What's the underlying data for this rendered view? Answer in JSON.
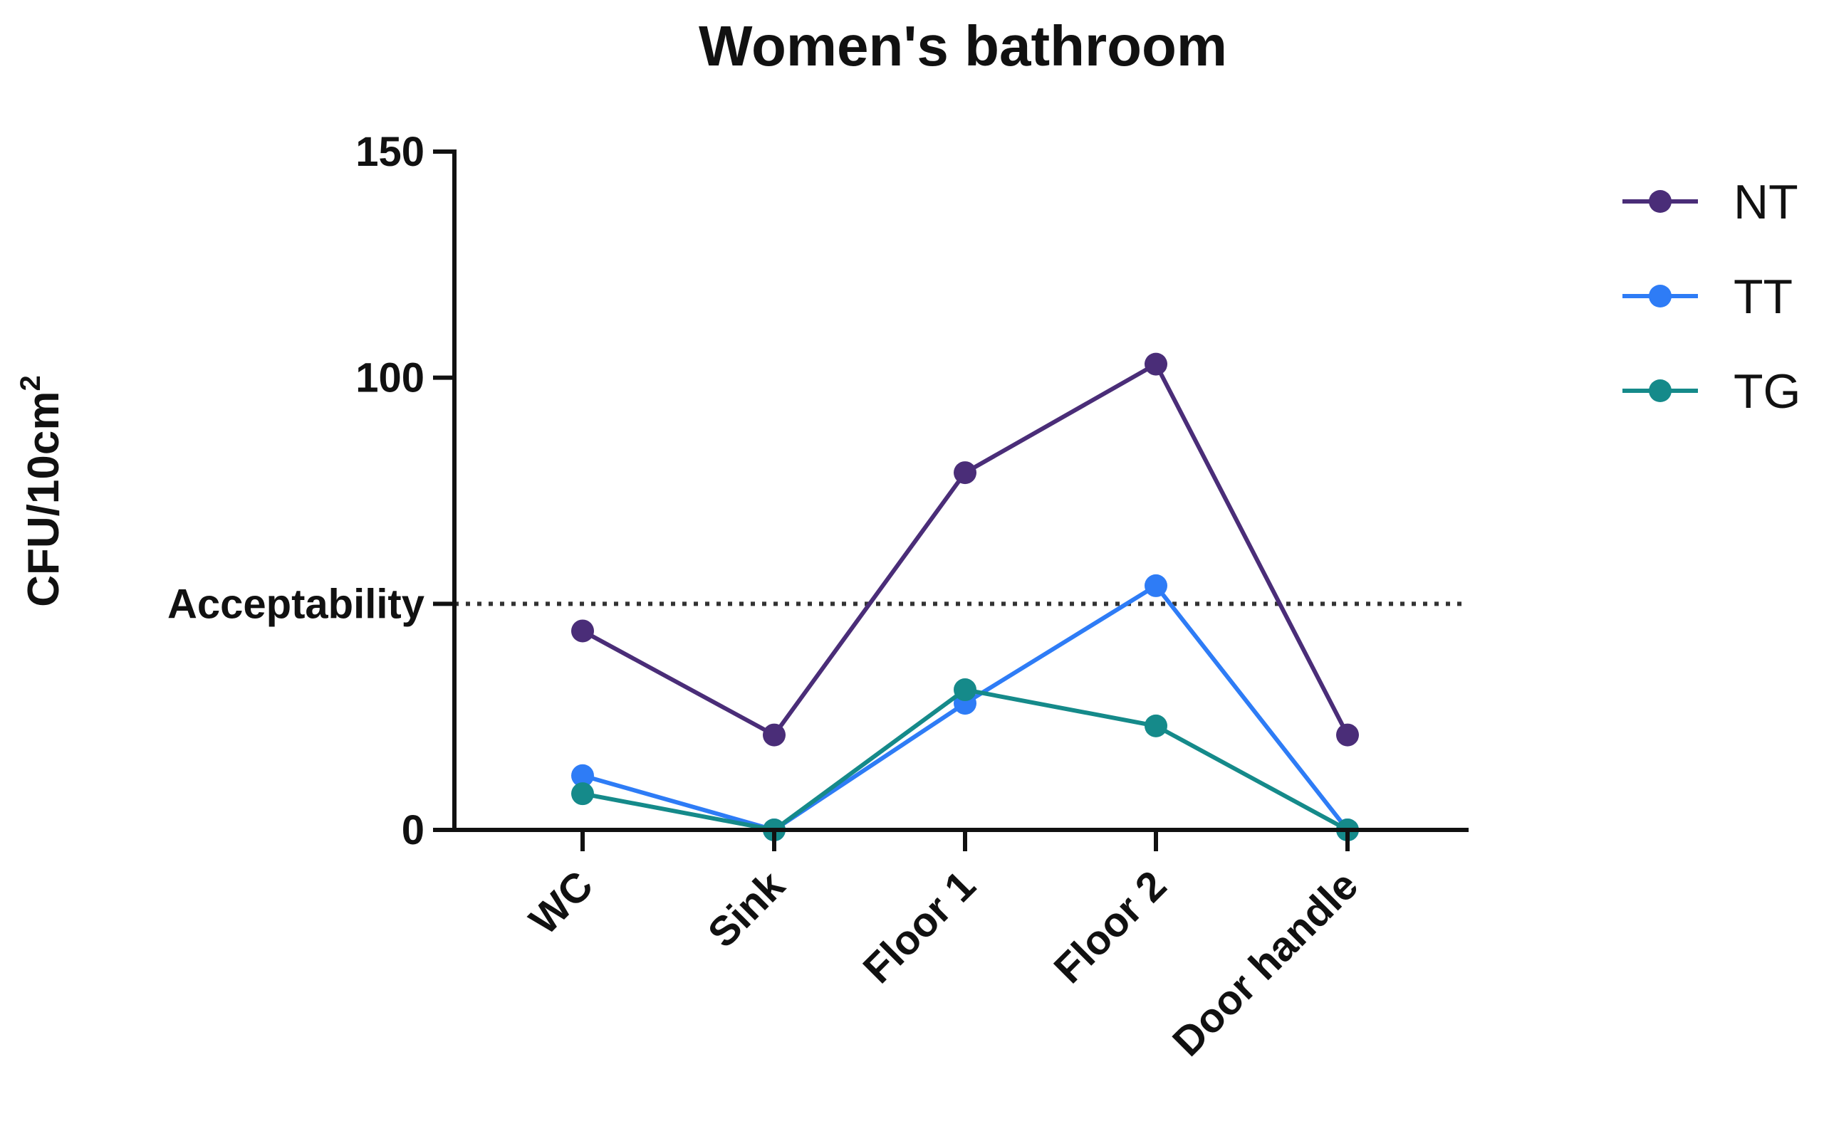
{
  "chart_data": {
    "type": "line",
    "title": "Women's bathroom",
    "xlabel": "",
    "ylabel": "CFU/10cm",
    "ylabel_superscript": "2",
    "ylim": [
      0,
      150
    ],
    "yticks": [
      {
        "value": 0,
        "label": "0"
      },
      {
        "value": 50,
        "label": "Acceptability"
      },
      {
        "value": 100,
        "label": "100"
      },
      {
        "value": 150,
        "label": "150"
      }
    ],
    "categories": [
      "WC",
      "Sink",
      "Floor 1",
      "Floor 2",
      "Door handle"
    ],
    "threshold": {
      "value": 50,
      "label": "Acceptability",
      "style": "dotted"
    },
    "series": [
      {
        "name": "NT",
        "color": "#4a2d78",
        "values": [
          44,
          21,
          79,
          103,
          21
        ]
      },
      {
        "name": "TT",
        "color": "#2e7cf6",
        "values": [
          12,
          0,
          28,
          54,
          0
        ]
      },
      {
        "name": "TG",
        "color": "#158a8a",
        "values": [
          8,
          0,
          31,
          23,
          0
        ]
      }
    ],
    "grid": false,
    "legend_position": "right"
  }
}
